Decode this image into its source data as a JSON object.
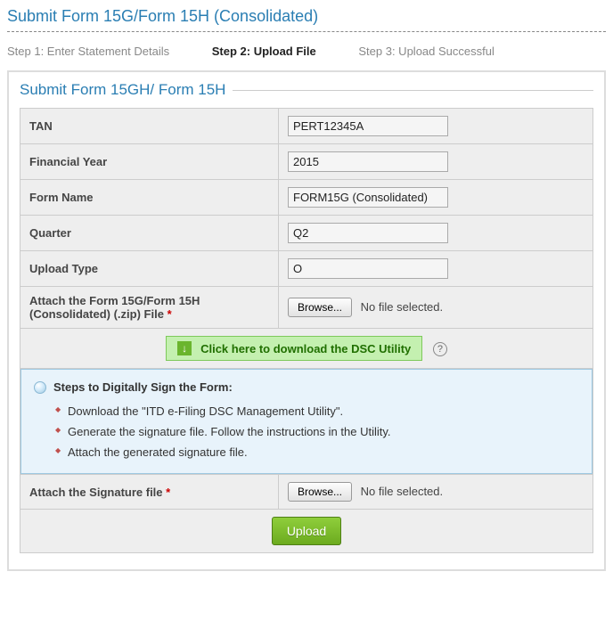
{
  "page_title": "Submit Form 15G/Form 15H (Consolidated)",
  "steps": [
    {
      "label": "Step 1: Enter Statement Details",
      "active": false
    },
    {
      "label": "Step 2: Upload File",
      "active": true
    },
    {
      "label": "Step 3: Upload Successful",
      "active": false
    }
  ],
  "fieldset_title": "Submit Form 15GH/ Form 15H",
  "fields": {
    "tan": {
      "label": "TAN",
      "value": "PERT12345A"
    },
    "fy": {
      "label": "Financial Year",
      "value": "2015"
    },
    "formname": {
      "label": "Form Name",
      "value": "FORM15G (Consolidated)"
    },
    "quarter": {
      "label": "Quarter",
      "value": "Q2"
    },
    "uptype": {
      "label": "Upload Type",
      "value": "O"
    }
  },
  "attach_zip": {
    "label": "Attach the Form 15G/Form 15H (Consolidated) (.zip) File",
    "required_mark": "*",
    "browse_label": "Browse...",
    "no_file_text": "No file selected."
  },
  "dsc": {
    "download_icon": "↓",
    "link_text": "Click here to download the DSC Utility",
    "help_glyph": "?"
  },
  "info": {
    "title": "Steps to Digitally Sign the Form:",
    "steps": [
      "Download the \"ITD e-Filing DSC Management Utility\".",
      "Generate the signature file. Follow the instructions in the Utility.",
      "Attach the generated signature file."
    ]
  },
  "attach_sig": {
    "label": "Attach the Signature file",
    "required_mark": "*",
    "browse_label": "Browse...",
    "no_file_text": "No file selected."
  },
  "upload_button": "Upload",
  "colors": {
    "title": "#2a7eb3",
    "panel_border": "#dddddd",
    "cell_bg": "#eeeeee",
    "dsc_bg": "#c4f0b0",
    "dsc_border": "#7ec95b",
    "info_bg": "#e8f3fb",
    "info_border": "#9ec9e2",
    "bullet": "#c0504d",
    "upload_bg": "#7cbf2a"
  }
}
